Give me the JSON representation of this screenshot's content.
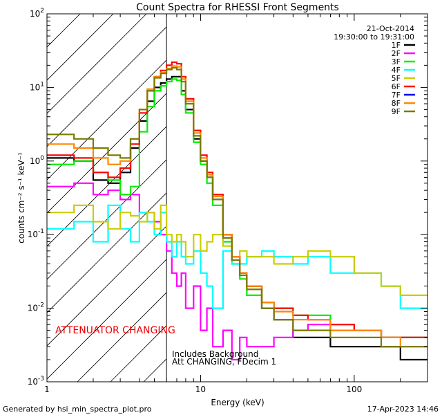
{
  "chart_data": {
    "type": "line",
    "title": "Count Spectra for RHESSI Front Segments",
    "date": "21-Oct-2014",
    "time_range": "19:30:00 to 19:31:00",
    "xlabel": "Energy (keV)",
    "ylabel": "counts cm⁻² s⁻¹ keV⁻¹",
    "x_scale": "log",
    "y_scale": "log",
    "xlim": [
      1,
      300
    ],
    "ylim": [
      0.001,
      100
    ],
    "x_ticks": [
      {
        "v": 1,
        "label": "1"
      },
      {
        "v": 10,
        "label": "10"
      },
      {
        "v": 100,
        "label": "100"
      }
    ],
    "y_ticks": [
      {
        "v": 0.001,
        "base": "10",
        "exp": "-3"
      },
      {
        "v": 0.01,
        "base": "10",
        "exp": "-2"
      },
      {
        "v": 0.1,
        "base": "10",
        "exp": "-1"
      },
      {
        "v": 1,
        "base": "10",
        "exp": "0"
      },
      {
        "v": 10,
        "base": "10",
        "exp": "1"
      },
      {
        "v": 100,
        "base": "10",
        "exp": "2"
      }
    ],
    "attenuator_boundary_keV": 6,
    "annotation_attenuator": "ATTENUATOR CHANGING",
    "annotation_background": "Includes Background",
    "annotation_att": "Att CHANGING, FDecim 1",
    "series": [
      {
        "name": "1F",
        "color": "#000000",
        "x": [
          1.0,
          1.5,
          2.0,
          2.5,
          3.0,
          3.5,
          4.0,
          4.5,
          5.0,
          5.5,
          6.0,
          6.5,
          7.0,
          7.5,
          8.0,
          9.0,
          10.0,
          11.0,
          12.0,
          14.0,
          16.0,
          18.0,
          20.0,
          25.0,
          30.0,
          40.0,
          50.0,
          70.0,
          100.0,
          150.0,
          200.0,
          300.0
        ],
        "y": [
          1.1,
          1.0,
          0.55,
          0.5,
          0.7,
          1.5,
          3.5,
          6.5,
          10.0,
          11.5,
          13.0,
          14.0,
          14.0,
          9.0,
          5.0,
          2.0,
          1.0,
          0.6,
          0.3,
          0.1,
          0.05,
          0.03,
          0.02,
          0.01,
          0.007,
          0.004,
          0.004,
          0.003,
          0.003,
          0.003,
          0.002,
          0.002
        ]
      },
      {
        "name": "2F",
        "color": "#ff00ff",
        "x": [
          1.0,
          1.5,
          2.0,
          2.5,
          3.0,
          3.5,
          4.0,
          4.5,
          5.0,
          5.5,
          6.0,
          6.5,
          7.0,
          7.5,
          8.0,
          9.0,
          10.0,
          11.0,
          12.0,
          14.0,
          16.0,
          18.0,
          20.0,
          25.0,
          30.0,
          40.0,
          50.0,
          70.0,
          100.0,
          150.0,
          200.0,
          300.0
        ],
        "y": [
          0.45,
          0.5,
          0.35,
          0.4,
          0.3,
          0.35,
          0.2,
          0.2,
          0.15,
          0.1,
          0.06,
          0.03,
          0.02,
          0.03,
          0.01,
          0.02,
          0.005,
          0.01,
          0.003,
          0.005,
          0.002,
          0.004,
          0.003,
          0.003,
          0.004,
          0.005,
          0.006,
          0.005,
          0.005,
          0.004,
          0.004,
          0.004
        ]
      },
      {
        "name": "3F",
        "color": "#00ee00",
        "x": [
          1.0,
          1.5,
          2.0,
          2.5,
          3.0,
          3.5,
          4.0,
          4.5,
          5.0,
          5.5,
          6.0,
          6.5,
          7.0,
          7.5,
          8.0,
          9.0,
          10.0,
          11.0,
          12.0,
          14.0,
          16.0,
          18.0,
          20.0,
          25.0,
          30.0,
          40.0,
          50.0,
          70.0,
          100.0,
          150.0,
          200.0,
          300.0
        ],
        "y": [
          0.9,
          1.0,
          0.7,
          0.55,
          0.35,
          0.45,
          2.5,
          5.5,
          9.0,
          10.5,
          12.0,
          13.0,
          12.5,
          8.0,
          4.5,
          1.8,
          0.9,
          0.5,
          0.25,
          0.08,
          0.04,
          0.025,
          0.015,
          0.012,
          0.01,
          0.008,
          0.008,
          0.006,
          0.005,
          0.004,
          0.004,
          0.003
        ]
      },
      {
        "name": "4F",
        "color": "#00ffff",
        "x": [
          1.0,
          1.5,
          2.0,
          2.5,
          3.0,
          3.5,
          4.0,
          4.5,
          5.0,
          5.5,
          6.0,
          6.5,
          7.0,
          7.5,
          8.0,
          9.0,
          10.0,
          11.0,
          12.0,
          14.0,
          16.0,
          18.0,
          20.0,
          25.0,
          30.0,
          40.0,
          50.0,
          70.0,
          100.0,
          150.0,
          200.0,
          300.0
        ],
        "y": [
          0.12,
          0.15,
          0.08,
          0.25,
          0.12,
          0.08,
          0.2,
          0.15,
          0.1,
          0.2,
          0.08,
          0.05,
          0.08,
          0.05,
          0.04,
          0.06,
          0.03,
          0.02,
          0.01,
          0.06,
          0.04,
          0.04,
          0.05,
          0.06,
          0.05,
          0.04,
          0.05,
          0.03,
          0.03,
          0.02,
          0.01,
          0.008
        ]
      },
      {
        "name": "5F",
        "color": "#cccc00",
        "x": [
          1.0,
          1.5,
          2.0,
          2.5,
          3.0,
          3.5,
          4.0,
          4.5,
          5.0,
          5.5,
          6.0,
          6.5,
          7.0,
          7.5,
          8.0,
          9.0,
          10.0,
          11.0,
          12.0,
          14.0,
          16.0,
          18.0,
          20.0,
          25.0,
          30.0,
          40.0,
          50.0,
          70.0,
          100.0,
          150.0,
          200.0,
          300.0
        ],
        "y": [
          0.2,
          0.25,
          0.15,
          0.12,
          0.2,
          0.18,
          0.15,
          0.2,
          0.12,
          0.25,
          0.1,
          0.08,
          0.1,
          0.08,
          0.05,
          0.1,
          0.06,
          0.08,
          0.1,
          0.07,
          0.05,
          0.06,
          0.05,
          0.05,
          0.04,
          0.05,
          0.06,
          0.05,
          0.03,
          0.02,
          0.015,
          0.01
        ]
      },
      {
        "name": "6F",
        "color": "#ff0000",
        "x": [
          1.0,
          1.5,
          2.0,
          2.5,
          3.0,
          3.5,
          4.0,
          4.5,
          5.0,
          5.5,
          6.0,
          6.5,
          7.0,
          7.5,
          8.0,
          9.0,
          10.0,
          11.0,
          12.0,
          14.0,
          16.0,
          18.0,
          20.0,
          25.0,
          30.0,
          40.0,
          50.0,
          70.0,
          100.0,
          150.0,
          200.0,
          300.0
        ],
        "y": [
          1.2,
          1.1,
          0.7,
          0.6,
          0.8,
          1.7,
          4.5,
          9.0,
          14.0,
          17.0,
          20.0,
          22.0,
          21.0,
          14.0,
          7.0,
          2.6,
          1.2,
          0.7,
          0.35,
          0.1,
          0.05,
          0.03,
          0.02,
          0.012,
          0.01,
          0.008,
          0.007,
          0.006,
          0.005,
          0.004,
          0.004,
          0.003
        ]
      },
      {
        "name": "7F",
        "color": "#0000ee",
        "x": [],
        "y": []
      },
      {
        "name": "8F",
        "color": "#ff8800",
        "x": [
          1.0,
          1.5,
          2.0,
          2.5,
          3.0,
          3.5,
          4.0,
          4.5,
          5.0,
          5.5,
          6.0,
          6.5,
          7.0,
          7.5,
          8.0,
          9.0,
          10.0,
          11.0,
          12.0,
          14.0,
          16.0,
          18.0,
          20.0,
          25.0,
          30.0,
          40.0,
          50.0,
          70.0,
          100.0,
          150.0,
          200.0,
          300.0
        ],
        "y": [
          1.7,
          1.5,
          1.1,
          0.9,
          1.0,
          2.0,
          5.0,
          9.5,
          14.0,
          16.0,
          18.0,
          19.5,
          19.0,
          13.0,
          6.5,
          2.4,
          1.1,
          0.65,
          0.33,
          0.1,
          0.05,
          0.03,
          0.02,
          0.012,
          0.009,
          0.007,
          0.007,
          0.005,
          0.005,
          0.004,
          0.003,
          0.003
        ]
      },
      {
        "name": "9F",
        "color": "#7a7a00",
        "x": [
          1.0,
          1.5,
          2.0,
          2.5,
          3.0,
          3.5,
          4.0,
          4.5,
          5.0,
          5.5,
          6.0,
          6.5,
          7.0,
          7.5,
          8.0,
          9.0,
          10.0,
          11.0,
          12.0,
          14.0,
          16.0,
          18.0,
          20.0,
          25.0,
          30.0,
          40.0,
          50.0,
          70.0,
          100.0,
          150.0,
          200.0,
          300.0
        ],
        "y": [
          2.3,
          2.0,
          1.5,
          1.2,
          1.1,
          2.0,
          5.0,
          9.0,
          13.5,
          15.5,
          17.5,
          18.5,
          17.5,
          12.0,
          6.0,
          2.2,
          1.0,
          0.6,
          0.3,
          0.09,
          0.045,
          0.028,
          0.018,
          0.01,
          0.007,
          0.005,
          0.005,
          0.004,
          0.004,
          0.003,
          0.003,
          0.002
        ]
      }
    ]
  },
  "footer": {
    "generated_by": "Generated by hsi_min_spectra_plot.pro",
    "date": "17-Apr-2023 14:46"
  }
}
